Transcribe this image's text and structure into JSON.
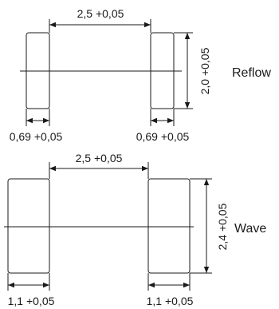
{
  "reflow": {
    "label": "Reflow",
    "spacing": "2,5 +0,05",
    "height": "2,0 +0,05",
    "pad_width_left": "0,69 +0,05",
    "pad_width_right": "0,69 +0,05"
  },
  "wave": {
    "label": "Wave",
    "spacing": "2,5 +0,05",
    "height": "2,4 +0,05",
    "pad_width_left": "1,1 +0,05",
    "pad_width_right": "1,1 +0,05"
  }
}
